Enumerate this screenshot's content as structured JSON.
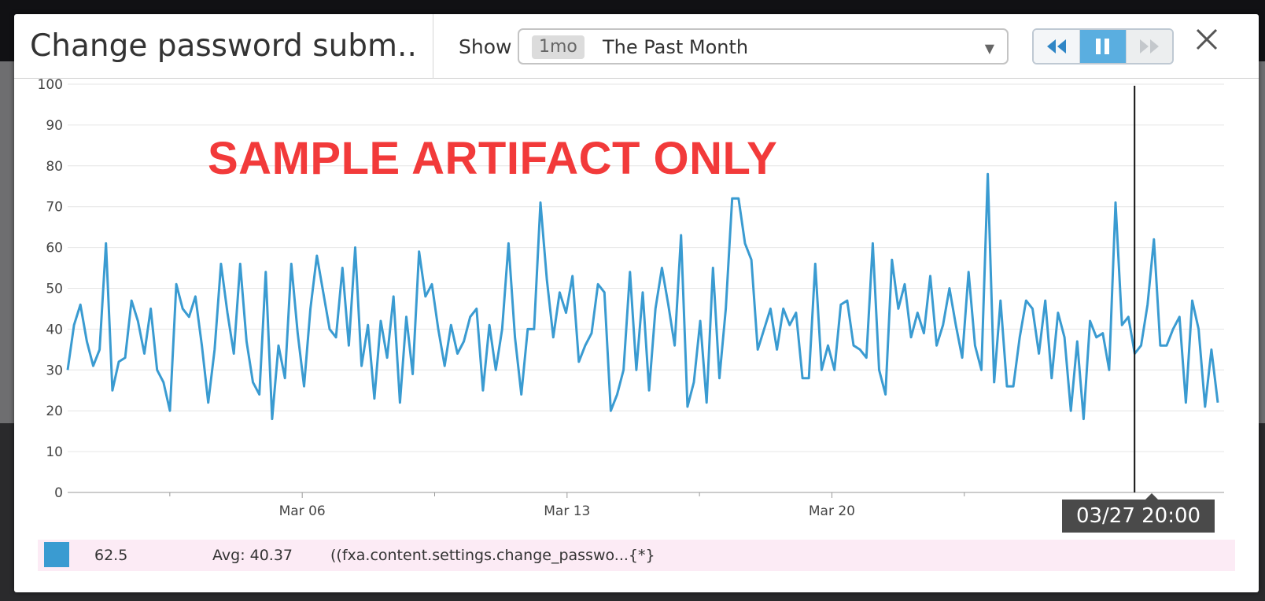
{
  "modal": {
    "title": "Change password subm...",
    "show_label": "Show",
    "timeframe": {
      "badge": "1mo",
      "label": "The Past Month"
    },
    "playback": {
      "rewind_icon": "rewind-icon",
      "pause_icon": "pause-icon",
      "fast_forward_icon": "fast-forward-icon",
      "active": "pause"
    },
    "close_icon": "close-icon"
  },
  "watermark": "SAMPLE ARTIFACT ONLY",
  "cursor": {
    "date_label": "03/27 20:00"
  },
  "legend": {
    "color": "#3a9bd1",
    "value": "62.5",
    "avg": "Avg: 40.37",
    "query": "((fxa.content.settings.change_passwo...{*}"
  },
  "chart_data": {
    "type": "line",
    "title": "Change password subm...",
    "xlabel": "",
    "ylabel": "",
    "ylim": [
      0,
      100
    ],
    "y_ticks": [
      0,
      10,
      20,
      30,
      40,
      50,
      60,
      70,
      80,
      90,
      100
    ],
    "x_tick_labels": [
      "Mar 06",
      "Mar 13",
      "Mar 20"
    ],
    "x_range_days": [
      -0.2,
      30.2
    ],
    "x_label_days": [
      6,
      13,
      20
    ],
    "x_minor_days": [
      2.5,
      9.5,
      16.5,
      23.5
    ],
    "cursor_day": 28.0,
    "grid": true,
    "legend": "bottom",
    "series": [
      {
        "color": "#3a9bd1",
        "values": [
          30,
          41,
          46,
          37,
          31,
          35,
          61,
          25,
          32,
          33,
          47,
          42,
          34,
          45,
          30,
          27,
          20,
          51,
          45,
          43,
          48,
          36,
          22,
          35,
          56,
          44,
          34,
          56,
          37,
          27,
          24,
          54,
          18,
          36,
          28,
          56,
          39,
          26,
          45,
          58,
          49,
          40,
          38,
          55,
          36,
          60,
          31,
          41,
          23,
          42,
          33,
          48,
          22,
          43,
          29,
          59,
          48,
          51,
          40,
          31,
          41,
          34,
          37,
          43,
          45,
          25,
          41,
          30,
          40,
          61,
          38,
          24,
          40,
          40,
          71,
          52,
          38,
          49,
          44,
          53,
          32,
          36,
          39,
          51,
          49,
          20,
          24,
          30,
          54,
          30,
          49,
          25,
          45,
          55,
          46,
          36,
          63,
          21,
          27,
          42,
          22,
          55,
          28,
          45,
          72,
          72,
          61,
          57,
          35,
          40,
          45,
          35,
          45,
          41,
          44,
          28,
          28,
          56,
          30,
          36,
          30,
          46,
          47,
          36,
          35,
          33,
          61,
          30,
          24,
          57,
          45,
          51,
          38,
          44,
          39,
          53,
          36,
          41,
          50,
          41,
          33,
          54,
          36,
          30,
          78,
          27,
          47,
          26,
          26,
          38,
          47,
          45,
          34,
          47,
          28,
          44,
          38,
          20,
          37,
          18,
          42,
          38,
          39,
          30,
          71,
          41,
          43,
          34,
          36,
          46,
          62,
          36,
          36,
          40,
          43,
          22,
          47,
          40,
          21,
          35,
          22
        ]
      }
    ]
  }
}
